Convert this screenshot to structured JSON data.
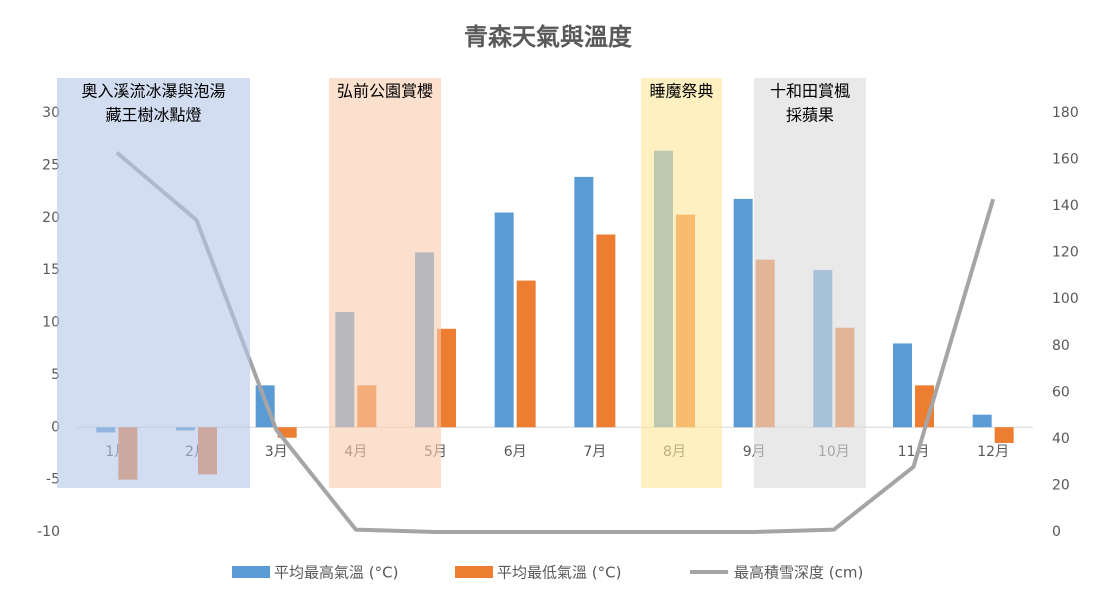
{
  "chart_data": {
    "type": "bar",
    "title": "青森天氣與溫度",
    "categories": [
      "1月",
      "2月",
      "3月",
      "4月",
      "5月",
      "6月",
      "7月",
      "8月",
      "9月",
      "10月",
      "11月",
      "12月"
    ],
    "series": [
      {
        "name": "平均最高氣溫 (°C)",
        "color": "#5b9bd5",
        "type": "bar",
        "values": [
          -0.5,
          -0.3,
          4,
          11,
          16.7,
          20.5,
          23.9,
          26.4,
          21.8,
          15,
          8,
          1.2
        ]
      },
      {
        "name": "平均最低氣溫 (°C)",
        "color": "#ed7d31",
        "type": "bar",
        "values": [
          -5,
          -4.5,
          -1,
          4,
          9.4,
          14,
          18.4,
          20.3,
          16,
          9.5,
          4,
          -1.5
        ]
      },
      {
        "name": "最高積雪深度 (cm)",
        "color": "#a5a5a5",
        "type": "line",
        "axis": "y2",
        "values": [
          163,
          134,
          44,
          1,
          0,
          0,
          0,
          0,
          0,
          1,
          28,
          143
        ]
      }
    ],
    "ylim": [
      -10,
      30
    ],
    "yticks": [
      -10,
      -5,
      0,
      5,
      10,
      15,
      20,
      25,
      30
    ],
    "y2lim": [
      0,
      180
    ],
    "y2ticks": [
      0,
      20,
      40,
      60,
      80,
      100,
      120,
      140,
      160,
      180
    ],
    "grid": false,
    "legend": "bottom",
    "annotations": [
      {
        "lines": [
          "奧入溪流冰瀑與泡湯",
          "藏王樹冰點燈"
        ],
        "color": "#b4c7e7"
      },
      {
        "lines": [
          "弘前公園賞櫻"
        ],
        "color": "#f8cbad"
      },
      {
        "lines": [
          "睡魔祭典"
        ],
        "color": "#ffe699"
      },
      {
        "lines": [
          "十和田賞楓",
          "採蘋果"
        ],
        "color": "#dbdbdb"
      }
    ]
  }
}
